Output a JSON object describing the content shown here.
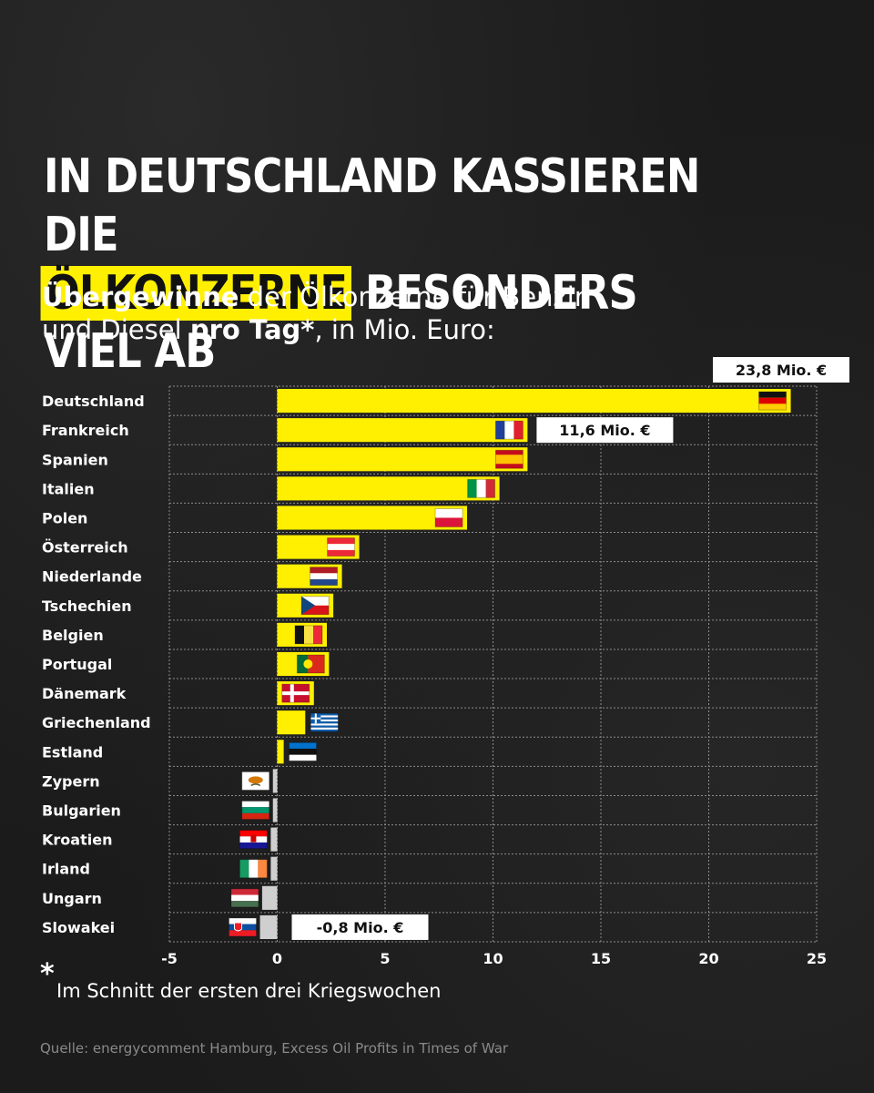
{
  "title": {
    "line1": "IN DEUTSCHLAND KASSIEREN DIE",
    "highlight": "ÖLKONZERNE",
    "line2_rest": "BESONDERS VIEL AB"
  },
  "subtitle": {
    "bold1": "Übergewinne",
    "text1": " der Ölkonzerne für Benzin",
    "text2": "und Diesel ",
    "bold2": "pro Tag*",
    "text3": ", in Mio. Euro:"
  },
  "footnote": {
    "star": "*",
    "text": "Im Schnitt der ersten drei Kriegswochen"
  },
  "source": "Quelle: energycomment Hamburg, Excess Oil Profits in Times of War",
  "colors": {
    "bar": "#ffef00",
    "negative_bar": "#cfcfcf",
    "background": "#1b1b1b",
    "text": "#ffffff",
    "grid": "#8c8c8c"
  },
  "chart_data": {
    "type": "bar",
    "orientation": "horizontal",
    "xlim": [
      -5,
      25
    ],
    "xticks": [
      "-5",
      "0",
      "5",
      "10",
      "15",
      "20",
      "25"
    ],
    "xtick_values": [
      -5,
      0,
      5,
      10,
      15,
      20,
      25
    ],
    "grid": true,
    "categories": [
      "Deutschland",
      "Frankreich",
      "Spanien",
      "Italien",
      "Polen",
      "Österreich",
      "Niederlande",
      "Tschechien",
      "Belgien",
      "Portugal",
      "Dänemark",
      "Griechenland",
      "Estland",
      "Zypern",
      "Bulgarien",
      "Kroatien",
      "Irland",
      "Ungarn",
      "Slowakei"
    ],
    "values": [
      23.8,
      11.6,
      11.6,
      10.3,
      8.8,
      3.8,
      3.0,
      2.6,
      2.3,
      2.4,
      1.7,
      1.3,
      0.3,
      -0.2,
      -0.2,
      -0.3,
      -0.3,
      -0.7,
      -0.8
    ],
    "flags": [
      "flag-germany",
      "flag-france",
      "flag-spain",
      "flag-italy",
      "flag-poland",
      "flag-austria",
      "flag-netherlands",
      "flag-czechia",
      "flag-belgium",
      "flag-portugal",
      "flag-denmark",
      "flag-greece",
      "flag-estonia",
      "flag-cyprus",
      "flag-bulgaria",
      "flag-croatia",
      "flag-ireland",
      "flag-hungary",
      "flag-slovakia"
    ],
    "annotations": [
      {
        "category": "Deutschland",
        "text": "23,8 Mio. €"
      },
      {
        "category": "Frankreich",
        "text": "11,6 Mio. €"
      },
      {
        "category": "Slowakei",
        "text": "-0,8 Mio. €"
      }
    ]
  }
}
